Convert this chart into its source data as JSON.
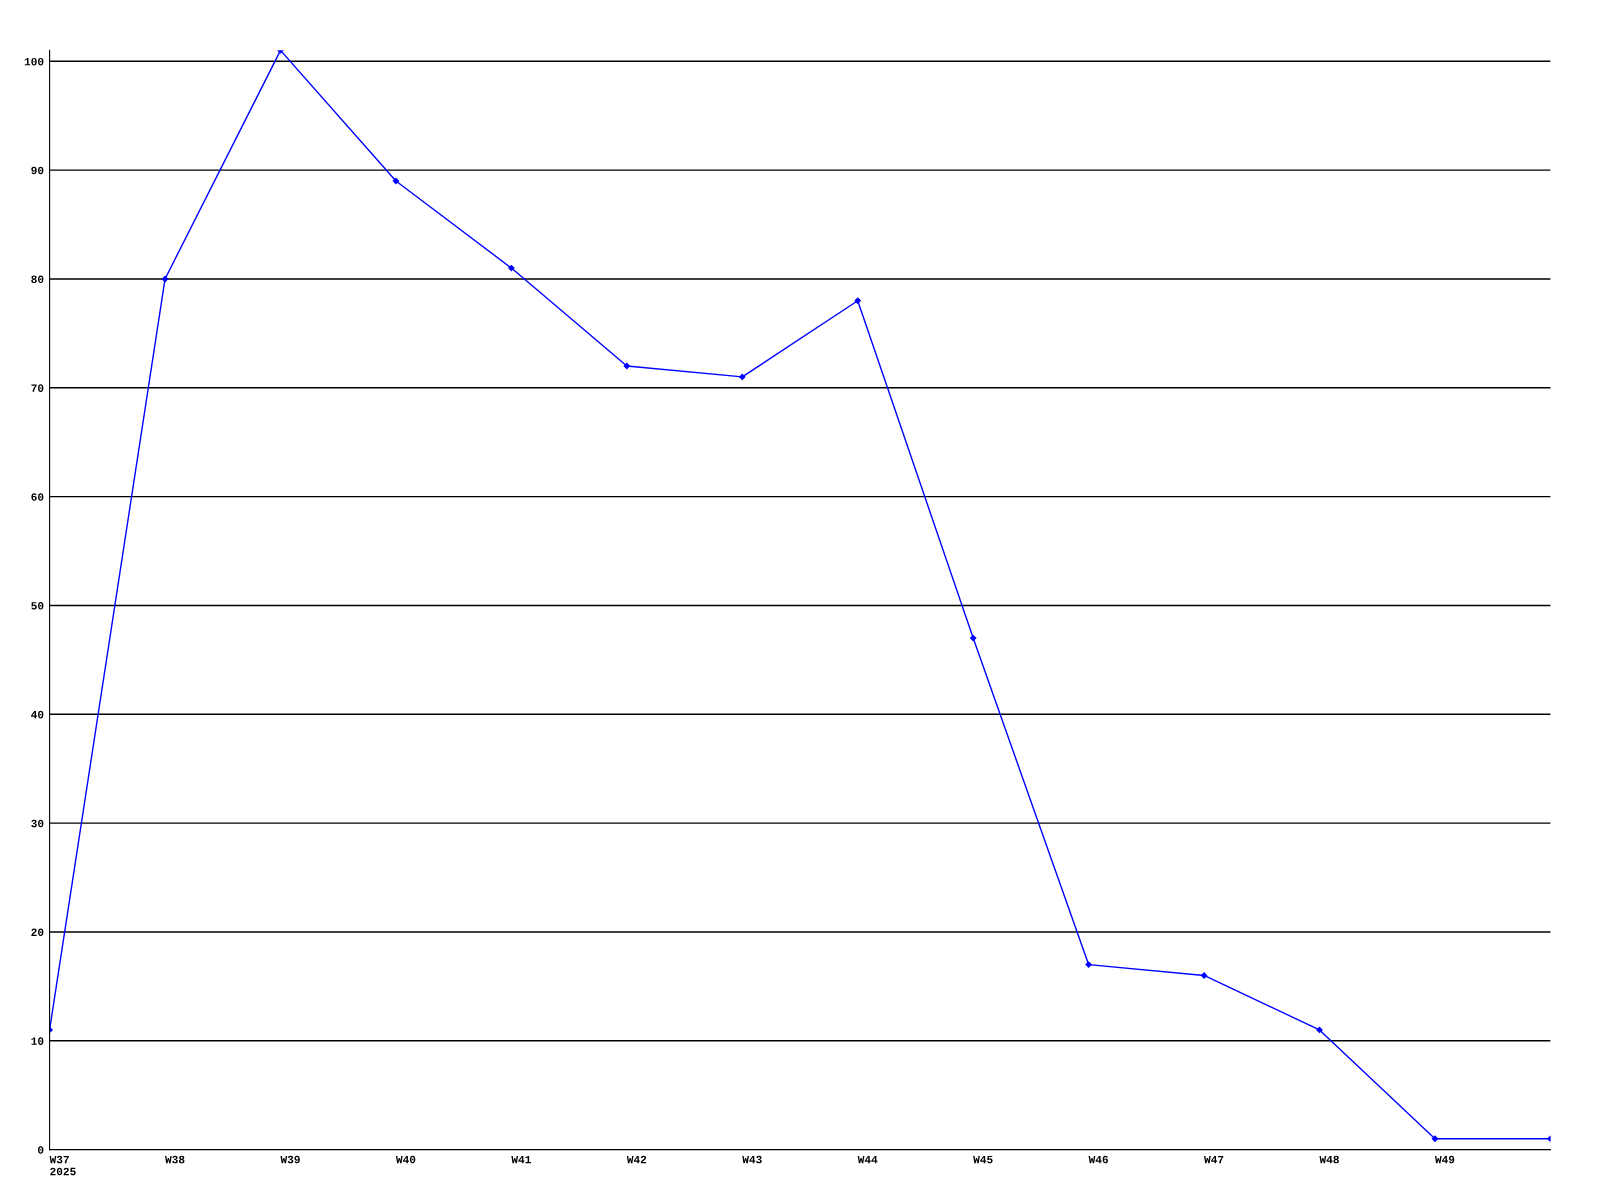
{
  "chart_data": {
    "type": "line",
    "categories": [
      "W37\n2025",
      "W38",
      "W39",
      "W40",
      "W41",
      "W42",
      "W43",
      "W44",
      "W45",
      "W46",
      "W47",
      "W48",
      "W49",
      null
    ],
    "series": [
      {
        "color": "#0000ff",
        "values": [
          11,
          80,
          101,
          89,
          81,
          72,
          71,
          78,
          47,
          17,
          16,
          11,
          1,
          1
        ]
      }
    ],
    "ylim": [
      0,
      101
    ],
    "yticks": [
      0,
      10,
      20,
      30,
      40,
      50,
      60,
      70,
      80,
      90,
      100
    ],
    "grid": "y",
    "marker": "diamond",
    "line_style": "solid",
    "legend": false
  }
}
